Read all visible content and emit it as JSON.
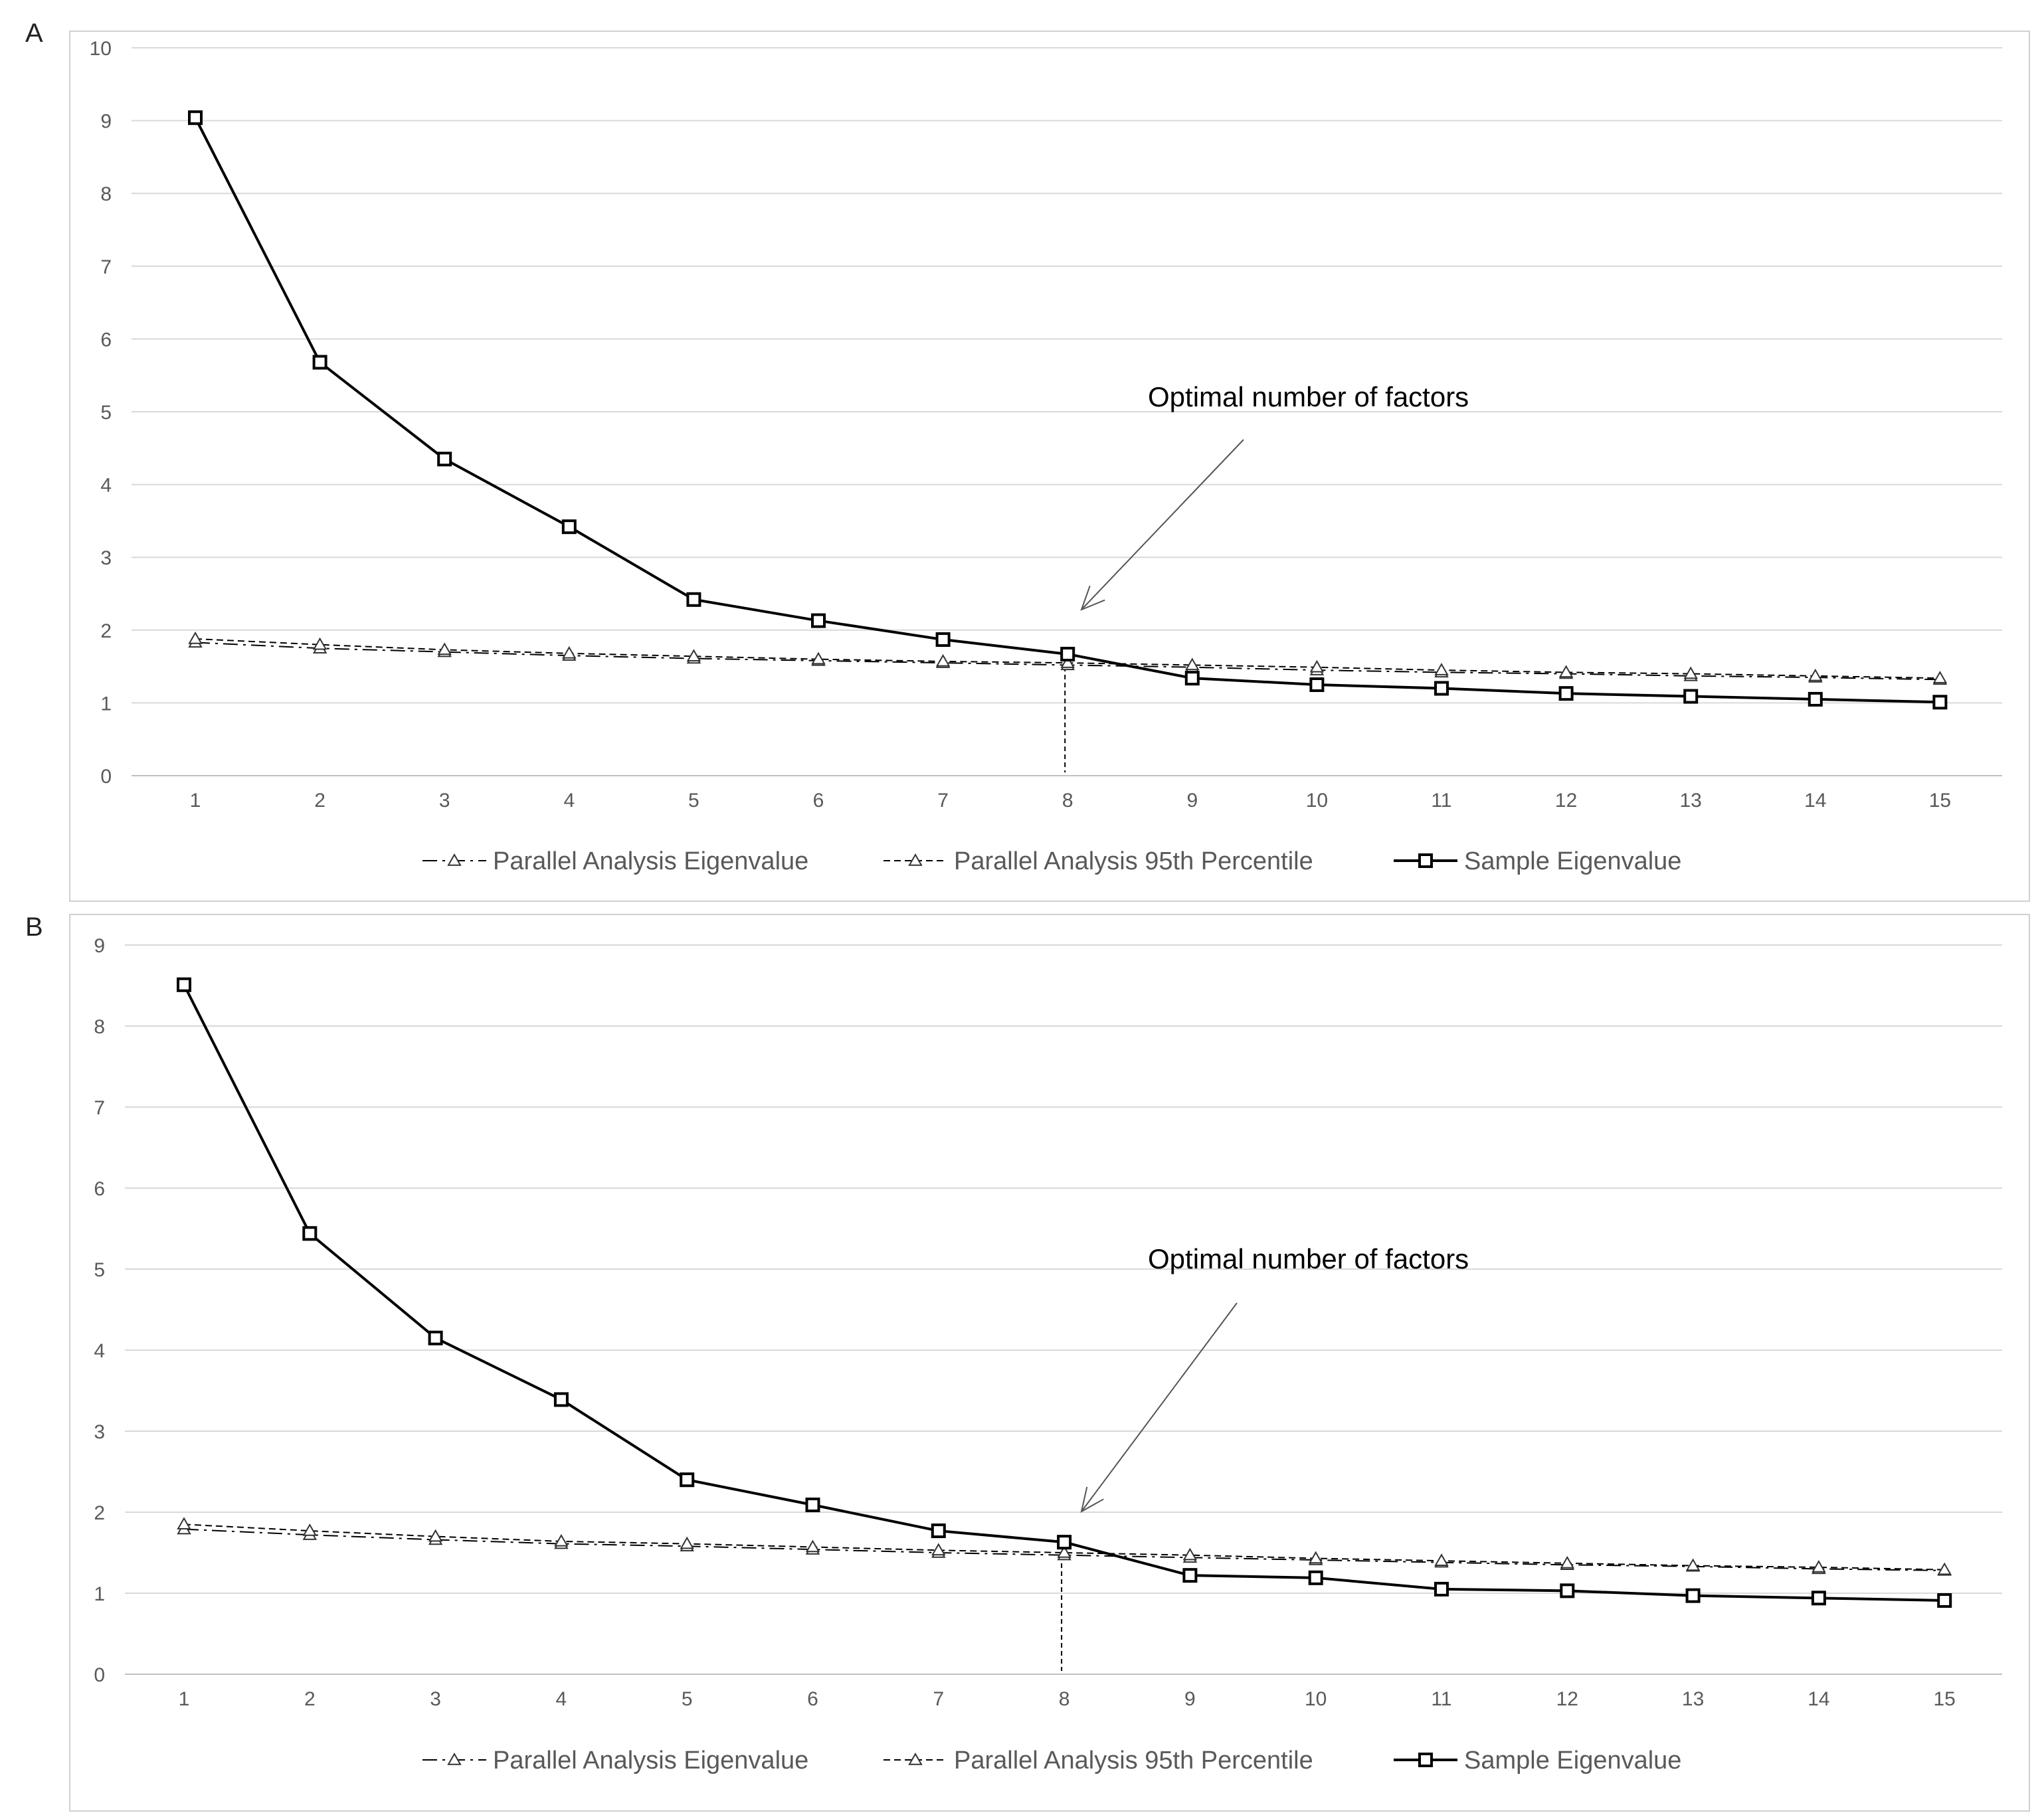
{
  "panels": [
    {
      "letter": "A"
    },
    {
      "letter": "B"
    }
  ],
  "chart_data": [
    {
      "type": "line",
      "panel": "A",
      "title": "",
      "xlabel": "",
      "ylabel": "",
      "categories": [
        "1",
        "2",
        "3",
        "4",
        "5",
        "6",
        "7",
        "8",
        "9",
        "10",
        "11",
        "12",
        "13",
        "14",
        "15"
      ],
      "ylim": [
        0,
        10
      ],
      "yticks": [
        "0",
        "1",
        "2",
        "3",
        "4",
        "5",
        "6",
        "7",
        "8",
        "9",
        "10"
      ],
      "grid": true,
      "legend_position": "bottom",
      "annotation": {
        "text": "Optimal number of factors",
        "x": "8"
      },
      "series": [
        {
          "name": "Parallel Analysis Eigenvalue",
          "style": "dash-dot",
          "marker": "triangle",
          "values": [
            1.83,
            1.75,
            1.7,
            1.65,
            1.61,
            1.58,
            1.55,
            1.52,
            1.49,
            1.45,
            1.42,
            1.4,
            1.37,
            1.35,
            1.32
          ]
        },
        {
          "name": "Parallel Analysis 95th Percentile",
          "style": "dashed",
          "marker": "triangle",
          "values": [
            1.88,
            1.8,
            1.73,
            1.68,
            1.64,
            1.6,
            1.57,
            1.55,
            1.52,
            1.49,
            1.45,
            1.42,
            1.4,
            1.37,
            1.34
          ]
        },
        {
          "name": "Sample Eigenvalue",
          "style": "solid",
          "marker": "square",
          "values": [
            9.04,
            5.68,
            4.35,
            3.42,
            2.42,
            2.13,
            1.87,
            1.67,
            1.34,
            1.25,
            1.2,
            1.13,
            1.09,
            1.05,
            1.01
          ]
        }
      ]
    },
    {
      "type": "line",
      "panel": "B",
      "title": "",
      "xlabel": "",
      "ylabel": "",
      "categories": [
        "1",
        "2",
        "3",
        "4",
        "5",
        "6",
        "7",
        "8",
        "9",
        "10",
        "11",
        "12",
        "13",
        "14",
        "15"
      ],
      "ylim": [
        0,
        9
      ],
      "yticks": [
        "0",
        "1",
        "2",
        "3",
        "4",
        "5",
        "6",
        "7",
        "8",
        "9"
      ],
      "grid": true,
      "legend_position": "bottom",
      "annotation": {
        "text": "Optimal number of factors",
        "x": "8"
      },
      "series": [
        {
          "name": "Parallel Analysis Eigenvalue",
          "style": "dash-dot",
          "marker": "triangle",
          "values": [
            1.79,
            1.72,
            1.66,
            1.61,
            1.58,
            1.54,
            1.5,
            1.47,
            1.44,
            1.41,
            1.38,
            1.35,
            1.33,
            1.3,
            1.28
          ]
        },
        {
          "name": "Parallel Analysis 95th Percentile",
          "style": "dashed",
          "marker": "triangle",
          "values": [
            1.85,
            1.77,
            1.7,
            1.64,
            1.61,
            1.57,
            1.53,
            1.5,
            1.47,
            1.43,
            1.4,
            1.37,
            1.34,
            1.32,
            1.29
          ]
        },
        {
          "name": "Sample Eigenvalue",
          "style": "solid",
          "marker": "square",
          "values": [
            8.51,
            5.44,
            4.15,
            3.39,
            2.4,
            2.09,
            1.77,
            1.63,
            1.22,
            1.19,
            1.05,
            1.03,
            0.97,
            0.94,
            0.91
          ]
        }
      ]
    }
  ]
}
